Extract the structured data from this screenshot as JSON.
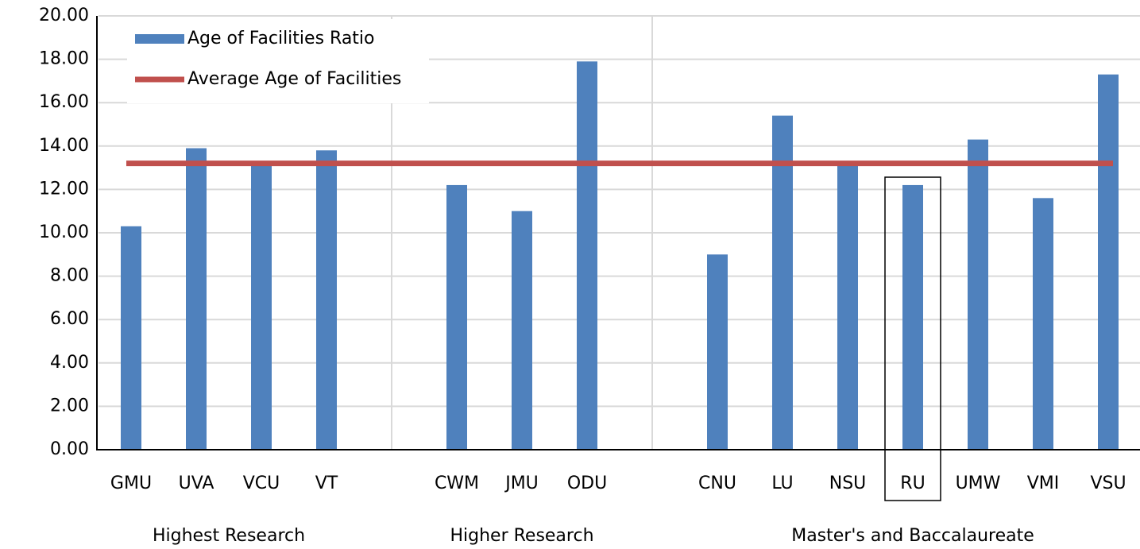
{
  "chart_data": {
    "type": "bar",
    "categories": [
      "GMU",
      "UVA",
      "VCU",
      "VT",
      null,
      "CWM",
      "JMU",
      "ODU",
      null,
      "CNU",
      "LU",
      "NSU",
      "RU",
      "UMW",
      "VMI",
      "VSU"
    ],
    "series": [
      {
        "name": "Age of Facilities Ratio",
        "color": "#4f81bd",
        "values": [
          10.3,
          13.9,
          13.2,
          13.8,
          null,
          12.2,
          11.0,
          17.9,
          null,
          9.0,
          15.4,
          13.1,
          12.2,
          14.3,
          11.6,
          17.3
        ]
      }
    ],
    "reference_line": {
      "name": "Average Age of Facilities",
      "value": 13.2,
      "color": "#c0504d"
    },
    "groups": [
      "Highest Research",
      "Higher Research",
      "Master's and Baccalaureate"
    ],
    "highlight_index": 12,
    "ylim": [
      0,
      20
    ],
    "yticks": [
      {
        "value": 0,
        "label": "0.00"
      },
      {
        "value": 2,
        "label": "2.00"
      },
      {
        "value": 4,
        "label": "4.00"
      },
      {
        "value": 6,
        "label": "6.00"
      },
      {
        "value": 8,
        "label": "8.00"
      },
      {
        "value": 10,
        "label": "10.00"
      },
      {
        "value": 12,
        "label": "12.00"
      },
      {
        "value": 14,
        "label": "14.00"
      },
      {
        "value": 16,
        "label": "16.00"
      },
      {
        "value": 18,
        "label": "18.00"
      },
      {
        "value": 20,
        "label": "20.00"
      }
    ],
    "grid": true,
    "legend": "upper left"
  }
}
